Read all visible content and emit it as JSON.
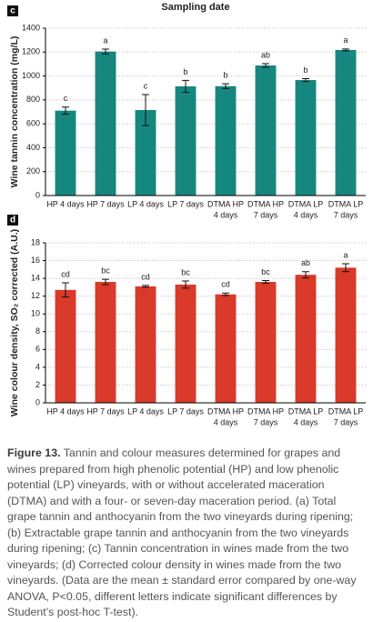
{
  "header": {
    "title": "Sampling date"
  },
  "chart_data": [
    {
      "type": "bar",
      "panel": "c",
      "ylabel": "Wine tannin concentration (mg/L)",
      "categories": [
        [
          "HP 4 days"
        ],
        [
          "HP 7 days"
        ],
        [
          "LP 4 days"
        ],
        [
          "LP 7 days"
        ],
        [
          "DTMA HP",
          "4 days"
        ],
        [
          "DTMA HP",
          "7 days"
        ],
        [
          "DTMA LP",
          "4 days"
        ],
        [
          "DTMA LP",
          "7 days"
        ]
      ],
      "values": [
        710,
        1205,
        715,
        913,
        915,
        1088,
        966,
        1218
      ],
      "errors": [
        30,
        20,
        130,
        50,
        20,
        15,
        12,
        8
      ],
      "annotations": [
        "c",
        "a",
        "c",
        "b",
        "b",
        "ab",
        "b",
        "a"
      ],
      "color": "#16877f",
      "ylim": [
        0,
        1400
      ],
      "yticks": [
        0,
        200,
        400,
        600,
        800,
        1000,
        1200,
        1400
      ],
      "grid": true
    },
    {
      "type": "bar",
      "panel": "d",
      "ylabel": "Wine colour density, SO₂ corrected (A.U.)",
      "categories": [
        [
          "HP 4 days"
        ],
        [
          "HP 7 days"
        ],
        [
          "LP 4 days"
        ],
        [
          "LP 7 days"
        ],
        [
          "DTMA HP",
          "4 days"
        ],
        [
          "DTMA HP",
          "7 days"
        ],
        [
          "DTMA LP",
          "4 days"
        ],
        [
          "DTMA LP",
          "7 days"
        ]
      ],
      "values": [
        12.7,
        13.6,
        13.1,
        13.3,
        12.2,
        13.6,
        14.4,
        15.2
      ],
      "errors": [
        0.8,
        0.3,
        0.1,
        0.4,
        0.15,
        0.15,
        0.35,
        0.45
      ],
      "annotations": [
        "cd",
        "bc",
        "cd",
        "bc",
        "cd",
        "bc",
        "ab",
        "a"
      ],
      "color": "#d93a29",
      "ylim": [
        0,
        18
      ],
      "yticks": [
        0,
        2,
        4,
        6,
        8,
        10,
        12,
        14,
        16,
        18
      ],
      "grid": true
    }
  ],
  "caption": {
    "label": "Figure 13.",
    "text": "Tannin and colour measures determined for grapes and wines prepared from high phenolic potential (HP) and low phenolic potential (LP) vineyards, with or without accelerated maceration (DTMA) and with a four- or seven-day maceration period. (a) Total grape tannin and anthocyanin from the two vineyards during ripening; (b) Extractable grape tannin and anthocyanin from the two vineyards during ripening; (c) Tannin concentration in wines made from the two vineyards; (d) Corrected colour density in wines made from the two vineyards. (Data are the mean ± standard error compared by one-way ANOVA, P<0.05, different letters indicate significant differences by Student's post-hoc T-test)."
  }
}
